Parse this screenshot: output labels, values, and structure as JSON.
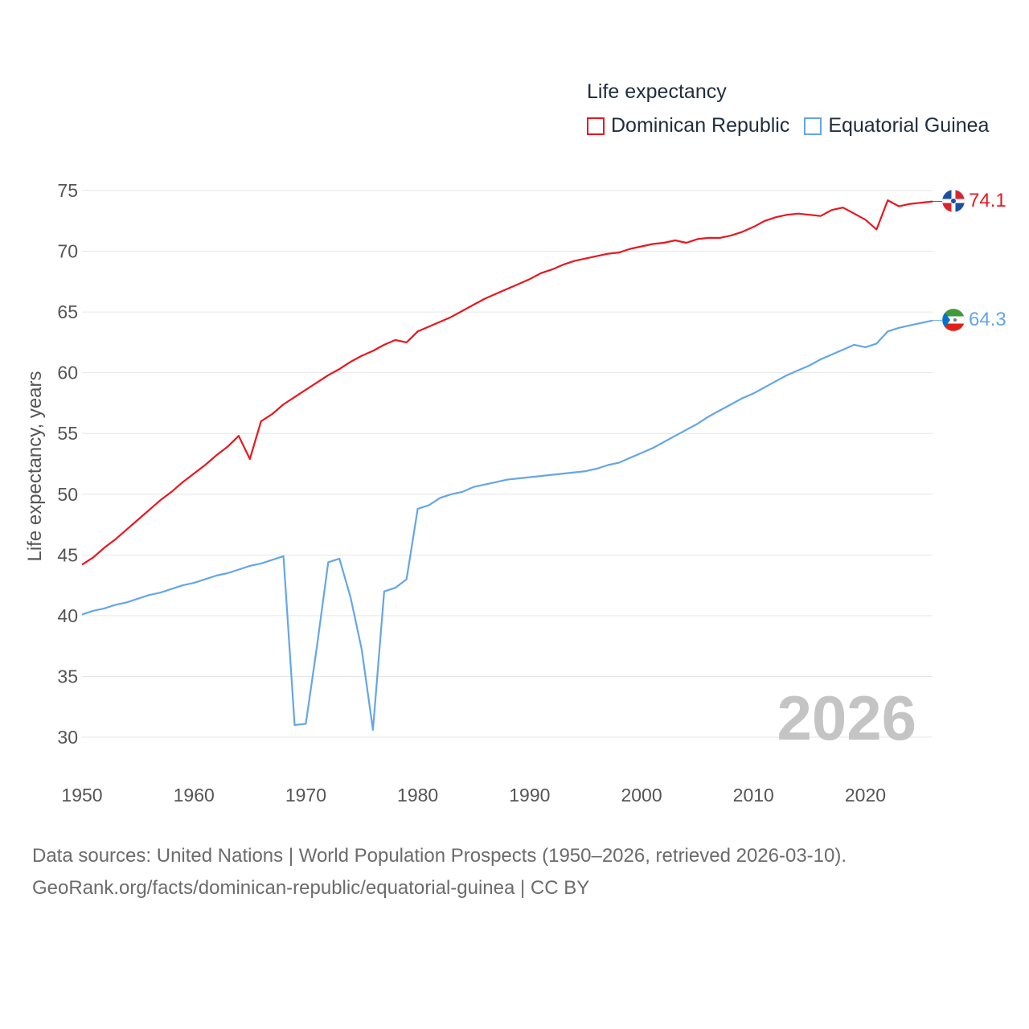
{
  "legend": {
    "title": "Life expectancy",
    "items": [
      {
        "label": "Dominican Republic",
        "color": "#e8171f"
      },
      {
        "label": "Equatorial Guinea",
        "color": "#64a6e8"
      }
    ]
  },
  "chart_data": {
    "type": "line",
    "ylabel": "Life expectancy, years",
    "xlabel": "",
    "xlim": [
      1950,
      2026
    ],
    "ylim": [
      30,
      75
    ],
    "x_ticks": [
      1950,
      1960,
      1970,
      1980,
      1990,
      2000,
      2010,
      2020
    ],
    "y_ticks": [
      30,
      35,
      40,
      45,
      50,
      55,
      60,
      65,
      70,
      75
    ],
    "grid": true,
    "year_watermark": "2026",
    "series": [
      {
        "name": "Dominican Republic",
        "color": "#e8171f",
        "end_label": "74.1",
        "flag": "dominican-republic-flag-icon",
        "points": [
          [
            1950,
            44.2
          ],
          [
            1951,
            44.8
          ],
          [
            1952,
            45.6
          ],
          [
            1953,
            46.3
          ],
          [
            1954,
            47.1
          ],
          [
            1955,
            47.9
          ],
          [
            1956,
            48.7
          ],
          [
            1957,
            49.5
          ],
          [
            1958,
            50.2
          ],
          [
            1959,
            51.0
          ],
          [
            1960,
            51.7
          ],
          [
            1961,
            52.4
          ],
          [
            1962,
            53.2
          ],
          [
            1963,
            53.9
          ],
          [
            1964,
            54.8
          ],
          [
            1965,
            52.9
          ],
          [
            1966,
            56.0
          ],
          [
            1967,
            56.6
          ],
          [
            1968,
            57.4
          ],
          [
            1969,
            58.0
          ],
          [
            1970,
            58.6
          ],
          [
            1971,
            59.2
          ],
          [
            1972,
            59.8
          ],
          [
            1973,
            60.3
          ],
          [
            1974,
            60.9
          ],
          [
            1975,
            61.4
          ],
          [
            1976,
            61.8
          ],
          [
            1977,
            62.3
          ],
          [
            1978,
            62.7
          ],
          [
            1979,
            62.5
          ],
          [
            1980,
            63.4
          ],
          [
            1981,
            63.8
          ],
          [
            1982,
            64.2
          ],
          [
            1983,
            64.6
          ],
          [
            1984,
            65.1
          ],
          [
            1985,
            65.6
          ],
          [
            1986,
            66.1
          ],
          [
            1987,
            66.5
          ],
          [
            1988,
            66.9
          ],
          [
            1989,
            67.3
          ],
          [
            1990,
            67.7
          ],
          [
            1991,
            68.2
          ],
          [
            1992,
            68.5
          ],
          [
            1993,
            68.9
          ],
          [
            1994,
            69.2
          ],
          [
            1995,
            69.4
          ],
          [
            1996,
            69.6
          ],
          [
            1997,
            69.8
          ],
          [
            1998,
            69.9
          ],
          [
            1999,
            70.2
          ],
          [
            2000,
            70.4
          ],
          [
            2001,
            70.6
          ],
          [
            2002,
            70.7
          ],
          [
            2003,
            70.9
          ],
          [
            2004,
            70.7
          ],
          [
            2005,
            71.0
          ],
          [
            2006,
            71.1
          ],
          [
            2007,
            71.1
          ],
          [
            2008,
            71.3
          ],
          [
            2009,
            71.6
          ],
          [
            2010,
            72.0
          ],
          [
            2011,
            72.5
          ],
          [
            2012,
            72.8
          ],
          [
            2013,
            73.0
          ],
          [
            2014,
            73.1
          ],
          [
            2015,
            73.0
          ],
          [
            2016,
            72.9
          ],
          [
            2017,
            73.4
          ],
          [
            2018,
            73.6
          ],
          [
            2019,
            73.1
          ],
          [
            2020,
            72.6
          ],
          [
            2021,
            71.8
          ],
          [
            2022,
            74.2
          ],
          [
            2023,
            73.7
          ],
          [
            2024,
            73.9
          ],
          [
            2025,
            74.0
          ],
          [
            2026,
            74.1
          ]
        ]
      },
      {
        "name": "Equatorial Guinea",
        "color": "#64a6e8",
        "end_label": "64.3",
        "flag": "equatorial-guinea-flag-icon",
        "points": [
          [
            1950,
            40.1
          ],
          [
            1951,
            40.4
          ],
          [
            1952,
            40.6
          ],
          [
            1953,
            40.9
          ],
          [
            1954,
            41.1
          ],
          [
            1955,
            41.4
          ],
          [
            1956,
            41.7
          ],
          [
            1957,
            41.9
          ],
          [
            1958,
            42.2
          ],
          [
            1959,
            42.5
          ],
          [
            1960,
            42.7
          ],
          [
            1961,
            43.0
          ],
          [
            1962,
            43.3
          ],
          [
            1963,
            43.5
          ],
          [
            1964,
            43.8
          ],
          [
            1965,
            44.1
          ],
          [
            1966,
            44.3
          ],
          [
            1967,
            44.6
          ],
          [
            1968,
            44.9
          ],
          [
            1969,
            31.0
          ],
          [
            1970,
            31.1
          ],
          [
            1971,
            37.5
          ],
          [
            1972,
            44.4
          ],
          [
            1973,
            44.7
          ],
          [
            1974,
            41.5
          ],
          [
            1975,
            37.2
          ],
          [
            1976,
            30.6
          ],
          [
            1977,
            42.0
          ],
          [
            1978,
            42.3
          ],
          [
            1979,
            43.0
          ],
          [
            1980,
            48.8
          ],
          [
            1981,
            49.1
          ],
          [
            1982,
            49.7
          ],
          [
            1983,
            50.0
          ],
          [
            1984,
            50.2
          ],
          [
            1985,
            50.6
          ],
          [
            1986,
            50.8
          ],
          [
            1987,
            51.0
          ],
          [
            1988,
            51.2
          ],
          [
            1989,
            51.3
          ],
          [
            1990,
            51.4
          ],
          [
            1991,
            51.5
          ],
          [
            1992,
            51.6
          ],
          [
            1993,
            51.7
          ],
          [
            1994,
            51.8
          ],
          [
            1995,
            51.9
          ],
          [
            1996,
            52.1
          ],
          [
            1997,
            52.4
          ],
          [
            1998,
            52.6
          ],
          [
            1999,
            53.0
          ],
          [
            2000,
            53.4
          ],
          [
            2001,
            53.8
          ],
          [
            2002,
            54.3
          ],
          [
            2003,
            54.8
          ],
          [
            2004,
            55.3
          ],
          [
            2005,
            55.8
          ],
          [
            2006,
            56.4
          ],
          [
            2007,
            56.9
          ],
          [
            2008,
            57.4
          ],
          [
            2009,
            57.9
          ],
          [
            2010,
            58.3
          ],
          [
            2011,
            58.8
          ],
          [
            2012,
            59.3
          ],
          [
            2013,
            59.8
          ],
          [
            2014,
            60.2
          ],
          [
            2015,
            60.6
          ],
          [
            2016,
            61.1
          ],
          [
            2017,
            61.5
          ],
          [
            2018,
            61.9
          ],
          [
            2019,
            62.3
          ],
          [
            2020,
            62.1
          ],
          [
            2021,
            62.4
          ],
          [
            2022,
            63.4
          ],
          [
            2023,
            63.7
          ],
          [
            2024,
            63.9
          ],
          [
            2025,
            64.1
          ],
          [
            2026,
            64.3
          ]
        ]
      }
    ]
  },
  "footer": {
    "line1": "Data sources: United Nations | World Population Prospects (1950–2026, retrieved 2026-03-10).",
    "line2": "GeoRank.org/facts/dominican-republic/equatorial-guinea | CC BY"
  }
}
